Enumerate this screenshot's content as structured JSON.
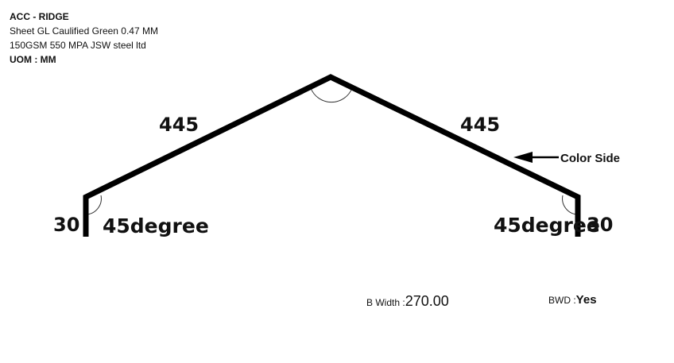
{
  "header": {
    "title": "ACC - RIDGE",
    "description": "Sheet GL Caulified Green 0.47 MM 150GSM 550 MPA JSW steel ltd",
    "uom": "UOM : MM"
  },
  "drawing": {
    "left_slope_length": "445",
    "right_slope_length": "445",
    "left_leg_length": "30",
    "right_leg_length": "30",
    "left_angle": "45degree",
    "right_angle": "45degree",
    "color_side_label": "Color Side",
    "stroke_color": "#000000"
  },
  "footer": {
    "b_width_label": "B Width :",
    "b_width_value": "270.00",
    "bwd_label": "BWD :",
    "bwd_value": "Yes"
  }
}
